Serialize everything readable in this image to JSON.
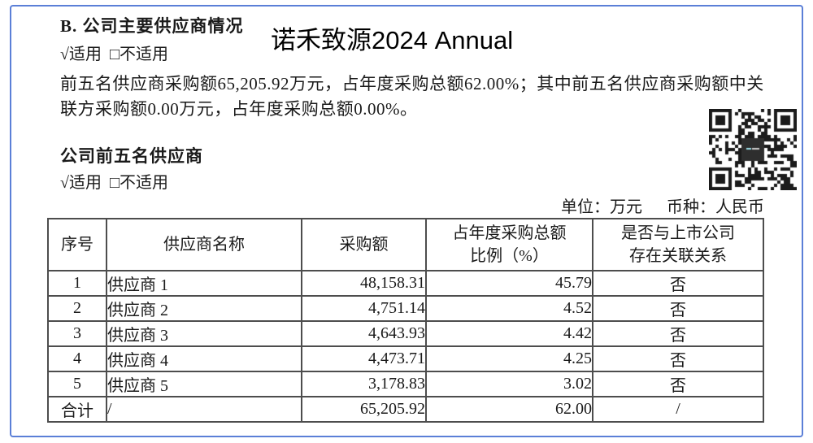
{
  "page": {
    "border_color": "#5b7fd7",
    "grid_color": "#4d4d4d",
    "background": "#ffffff"
  },
  "icons": {
    "qr_code": "qr-code",
    "check_mark": "√",
    "empty_checkbox": "□"
  },
  "header": {
    "section_title": "B. 公司主要供应商情况",
    "applicable_line": "√适用  □不适用",
    "watermark_title": "诺禾致源2024 Annual"
  },
  "paragraph": "前五名供应商采购额65,205.92万元，占年度采购总额62.00%；其中前五名供应商采购额中关联方采购额0.00万元，占年度采购总额0.00%。",
  "subsection": {
    "title": "公司前五名供应商",
    "applicable_line": "√适用  □不适用"
  },
  "unit_line": {
    "unit": "单位：万元",
    "currency": "币种：人民币"
  },
  "table": {
    "headers": [
      "序号",
      "供应商名称",
      "采购额",
      "占年度采购总额\n比例（%）",
      "是否与上市公司\n存在关联关系"
    ],
    "rows": [
      [
        "1",
        "供应商 1",
        "48,158.31",
        "45.79",
        "否"
      ],
      [
        "2",
        "供应商 2",
        "4,751.14",
        "4.52",
        "否"
      ],
      [
        "3",
        "供应商 3",
        "4,643.93",
        "4.42",
        "否"
      ],
      [
        "4",
        "供应商 4",
        "4,473.71",
        "4.25",
        "否"
      ],
      [
        "5",
        "供应商 5",
        "3,178.83",
        "3.02",
        "否"
      ],
      [
        "合计",
        "/",
        "65,205.92",
        "62.00",
        "/"
      ]
    ]
  }
}
